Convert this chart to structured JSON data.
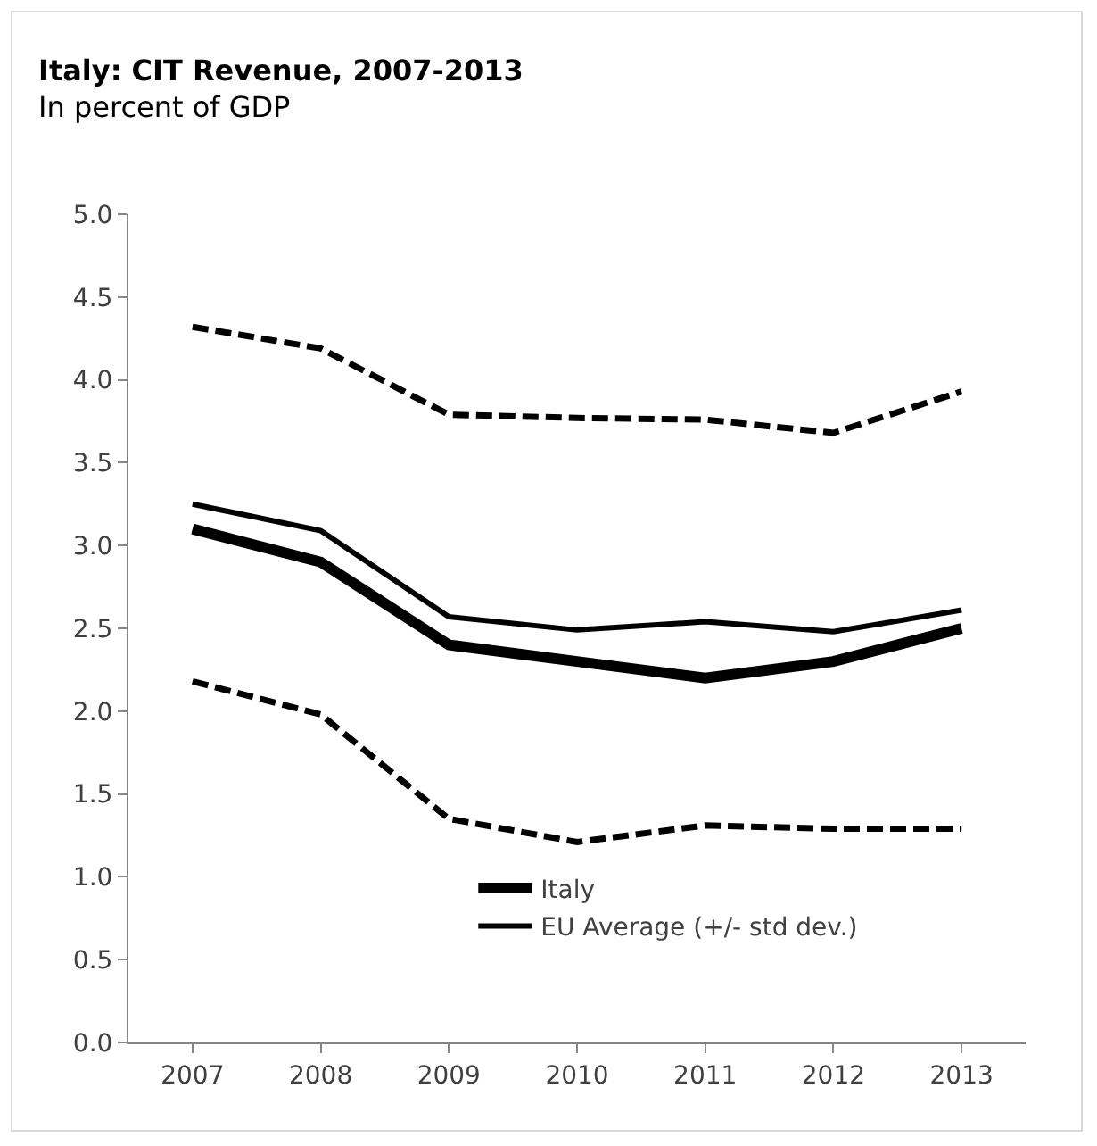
{
  "chart_data": {
    "type": "line",
    "title": "Italy: CIT Revenue, 2007-2013",
    "subtitle": "In percent of GDP",
    "categories": [
      "2007",
      "2008",
      "2009",
      "2010",
      "2011",
      "2012",
      "2013"
    ],
    "series": [
      {
        "name": "Italy",
        "color": "#000000",
        "line_style": "solid",
        "values": [
          3.1,
          2.9,
          2.4,
          2.3,
          2.2,
          2.3,
          2.5
        ]
      },
      {
        "name": "EU Average (+/- std dev.)",
        "color": "#000000",
        "line_style": "solid",
        "values": [
          3.25,
          3.09,
          2.57,
          2.49,
          2.54,
          2.48,
          2.61
        ]
      },
      {
        "color": "#000000",
        "line_style": "dashed",
        "values": [
          4.32,
          4.19,
          3.79,
          3.77,
          3.76,
          3.68,
          3.93
        ]
      },
      {
        "color": "#000000",
        "line_style": "dashed",
        "values": [
          2.18,
          1.98,
          1.35,
          1.21,
          1.31,
          1.29,
          1.29
        ]
      }
    ],
    "ylim": [
      0,
      5
    ],
    "yticks": [
      {
        "value": 0,
        "label": "0.0"
      },
      {
        "value": 0.5,
        "label": "0.5"
      },
      {
        "value": 1,
        "label": "1.0"
      },
      {
        "value": 1.5,
        "label": "1.5"
      },
      {
        "value": 2,
        "label": "2.0"
      },
      {
        "value": 2.5,
        "label": "2.5"
      },
      {
        "value": 3,
        "label": "3.0"
      },
      {
        "value": 3.5,
        "label": "3.5"
      },
      {
        "value": 4,
        "label": "4.0"
      },
      {
        "value": 4.5,
        "label": "4.5"
      },
      {
        "value": 5,
        "label": "5.0"
      }
    ],
    "grid": false,
    "legend": "bottom",
    "marker": "none"
  }
}
